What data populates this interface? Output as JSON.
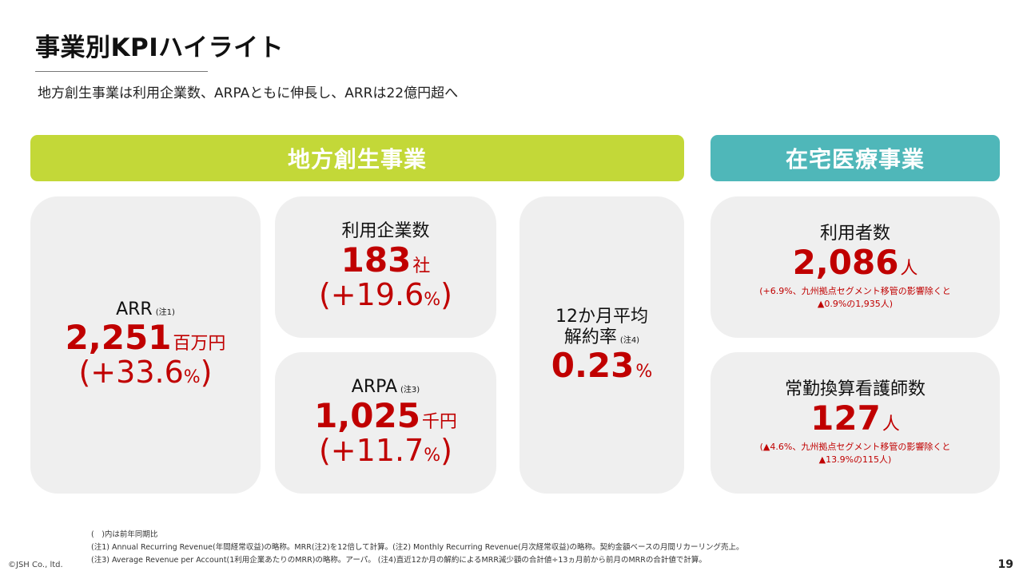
{
  "header": {
    "title": "事業別KPIハイライト",
    "subtitle": "地方創生事業は利用企業数、ARPAともに伸長し、ARRは22億円超へ"
  },
  "segments": {
    "regional": "地方創生事業",
    "home_care": "在宅医療事業"
  },
  "kpis": {
    "arr": {
      "label": "ARR",
      "note": "(注1)",
      "value": "2,251",
      "unit": "百万円",
      "change": "(+33.6",
      "pct": "%",
      "close": ")"
    },
    "companies": {
      "label": "利用企業数",
      "value": "183",
      "unit": "社",
      "change": "(+19.6",
      "pct": "%",
      "close": ")"
    },
    "arpa": {
      "label": "ARPA",
      "note": "(注3)",
      "value": "1,025",
      "unit": "千円",
      "change": "(+11.7",
      "pct": "%",
      "close": ")"
    },
    "churn": {
      "label_line1": "12か月平均",
      "label_line2": "解約率",
      "note": "(注4)",
      "value": "0.23",
      "unit": "%"
    },
    "users": {
      "label": "利用者数",
      "value": "2,086",
      "unit": "人",
      "remark_line1": "(+6.9%、九州拠点セグメント移管の影響除くと",
      "remark_line2": "▲0.9%の1,935人)"
    },
    "nurses": {
      "label": "常勤換算看護師数",
      "value": "127",
      "unit": "人",
      "remark_line1": "(▲4.6%、九州拠点セグメント移管の影響除くと",
      "remark_line2": "▲13.9%の115人)"
    }
  },
  "footer": {
    "line1": "(　)内は前年同期比",
    "line2": "(注1) Annual Recurring Revenue(年間経常収益)の略称。MRR(注2)を12倍して計算。(注2) Monthly Recurring Revenue(月次経常収益)の略称。契約金額ベースの月間リカーリング売上。",
    "line3": "(注3) Average Revenue per Account(1利用企業あたりのMRR)の略称。アーパ。 (注4)直近12か月の解約によるMRR減少額の合計値÷13ヵ月前から前月のMRRの合計値で計算。",
    "copyright": "©JSH Co., ltd.",
    "page": "19"
  }
}
